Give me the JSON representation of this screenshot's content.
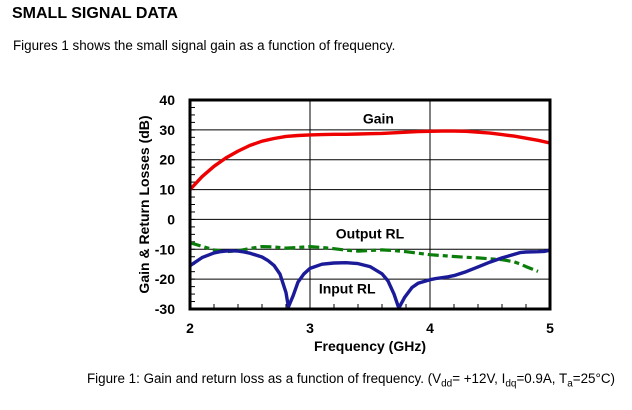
{
  "heading": "SMALL SIGNAL DATA",
  "intro": "Figures 1 shows the small signal gain as a function of frequency.",
  "chart_data": {
    "type": "line",
    "xlabel": "Frequency (GHz)",
    "ylabel": "Gain & Return Losses (dB)",
    "xlim": [
      2,
      5
    ],
    "ylim": [
      -30,
      40
    ],
    "x_ticks": [
      2,
      3,
      4,
      5
    ],
    "y_ticks": [
      40,
      30,
      20,
      10,
      0,
      -10,
      -20,
      -30
    ],
    "x_minor_step": 0.2,
    "y_minor_step": 2.5,
    "grid": true,
    "legend_position": "inline-labels",
    "series": [
      {
        "name": "Gain",
        "color": "#ee0000",
        "style": "solid",
        "width": 3.4,
        "z": 3,
        "label_pos": [
          3.57,
          33.8
        ],
        "points": [
          [
            2,
            10
          ],
          [
            2.1,
            14.3
          ],
          [
            2.2,
            17.8
          ],
          [
            2.3,
            20.6
          ],
          [
            2.4,
            22.9
          ],
          [
            2.5,
            24.8
          ],
          [
            2.6,
            26.2
          ],
          [
            2.7,
            27.1
          ],
          [
            2.8,
            27.8
          ],
          [
            2.9,
            28.1
          ],
          [
            3,
            28.3
          ],
          [
            3.1,
            28.4
          ],
          [
            3.2,
            28.5
          ],
          [
            3.3,
            28.5
          ],
          [
            3.4,
            28.6
          ],
          [
            3.5,
            28.7
          ],
          [
            3.6,
            28.8
          ],
          [
            3.7,
            29
          ],
          [
            3.8,
            29.2
          ],
          [
            3.9,
            29.4
          ],
          [
            4,
            29.5
          ],
          [
            4.1,
            29.6
          ],
          [
            4.2,
            29.6
          ],
          [
            4.3,
            29.5
          ],
          [
            4.4,
            29.2
          ],
          [
            4.5,
            28.9
          ],
          [
            4.6,
            28.4
          ],
          [
            4.7,
            27.9
          ],
          [
            4.8,
            27.2
          ],
          [
            4.9,
            26.5
          ],
          [
            5,
            25.6
          ]
        ]
      },
      {
        "name": "Output RL",
        "color": "#0a7d0a",
        "style": "dashed",
        "width": 3.2,
        "z": 1,
        "label_pos": [
          3.5,
          -4.7
        ],
        "points": [
          [
            2,
            -7.8
          ],
          [
            2.1,
            -9
          ],
          [
            2.2,
            -10.2
          ],
          [
            2.3,
            -10.8
          ],
          [
            2.4,
            -10.5
          ],
          [
            2.5,
            -9.7
          ],
          [
            2.6,
            -9.1
          ],
          [
            2.7,
            -9.2
          ],
          [
            2.8,
            -9.6
          ],
          [
            2.9,
            -9.4
          ],
          [
            3,
            -9.1
          ],
          [
            3.1,
            -9.4
          ],
          [
            3.2,
            -9.8
          ],
          [
            3.3,
            -10.3
          ],
          [
            3.4,
            -10.6
          ],
          [
            3.5,
            -10.4
          ],
          [
            3.6,
            -10.2
          ],
          [
            3.7,
            -10.4
          ],
          [
            3.8,
            -10.8
          ],
          [
            3.9,
            -11.3
          ],
          [
            4,
            -11.8
          ],
          [
            4.1,
            -12.1
          ],
          [
            4.2,
            -12.4
          ],
          [
            4.3,
            -12.7
          ],
          [
            4.4,
            -12.9
          ],
          [
            4.5,
            -13.2
          ],
          [
            4.6,
            -13.5
          ],
          [
            4.7,
            -14.2
          ],
          [
            4.75,
            -14.9
          ],
          [
            4.8,
            -15.8
          ],
          [
            4.85,
            -16.6
          ],
          [
            4.9,
            -17.4
          ]
        ]
      },
      {
        "name": "Input RL",
        "color": "#1b1b99",
        "style": "solid",
        "width": 3.4,
        "z": 2,
        "label_pos": [
          3.31,
          -23.2
        ],
        "points": [
          [
            2,
            -15.5
          ],
          [
            2.1,
            -12.8
          ],
          [
            2.2,
            -11.2
          ],
          [
            2.25,
            -10.8
          ],
          [
            2.3,
            -10.6
          ],
          [
            2.35,
            -10.5
          ],
          [
            2.4,
            -10.6
          ],
          [
            2.45,
            -10.9
          ],
          [
            2.5,
            -11.3
          ],
          [
            2.6,
            -12.6
          ],
          [
            2.65,
            -13.8
          ],
          [
            2.7,
            -15.4
          ],
          [
            2.75,
            -18.3
          ],
          [
            2.8,
            -24.5
          ],
          [
            2.82,
            -29.3
          ],
          [
            2.86,
            -25.5
          ],
          [
            2.9,
            -21
          ],
          [
            2.95,
            -18.2
          ],
          [
            3,
            -16.4
          ],
          [
            3.1,
            -15
          ],
          [
            3.2,
            -14.6
          ],
          [
            3.3,
            -14.5
          ],
          [
            3.4,
            -14.8
          ],
          [
            3.5,
            -15.8
          ],
          [
            3.6,
            -18.2
          ],
          [
            3.65,
            -20.6
          ],
          [
            3.7,
            -25
          ],
          [
            3.74,
            -29.7
          ],
          [
            3.79,
            -26
          ],
          [
            3.85,
            -22.8
          ],
          [
            3.9,
            -21.4
          ],
          [
            4,
            -20.2
          ],
          [
            4.05,
            -19.8
          ],
          [
            4.1,
            -19.5
          ],
          [
            4.15,
            -19.2
          ],
          [
            4.2,
            -18.8
          ],
          [
            4.3,
            -17.5
          ],
          [
            4.4,
            -15.9
          ],
          [
            4.5,
            -14.3
          ],
          [
            4.6,
            -12.9
          ],
          [
            4.7,
            -11.7
          ],
          [
            4.75,
            -11.1
          ],
          [
            4.8,
            -10.9
          ],
          [
            4.9,
            -10.8
          ],
          [
            4.95,
            -10.7
          ],
          [
            5,
            -10.3
          ]
        ]
      }
    ]
  },
  "caption": {
    "parts": [
      {
        "t": "Figure 1: Gain and return loss as a function of frequency. (V"
      },
      {
        "t": "dd",
        "sub": true
      },
      {
        "t": "= +12V, I"
      },
      {
        "t": "dq",
        "sub": true
      },
      {
        "t": "=0.9A, T"
      },
      {
        "t": "a",
        "sub": true
      },
      {
        "t": "=25°C)"
      }
    ]
  }
}
